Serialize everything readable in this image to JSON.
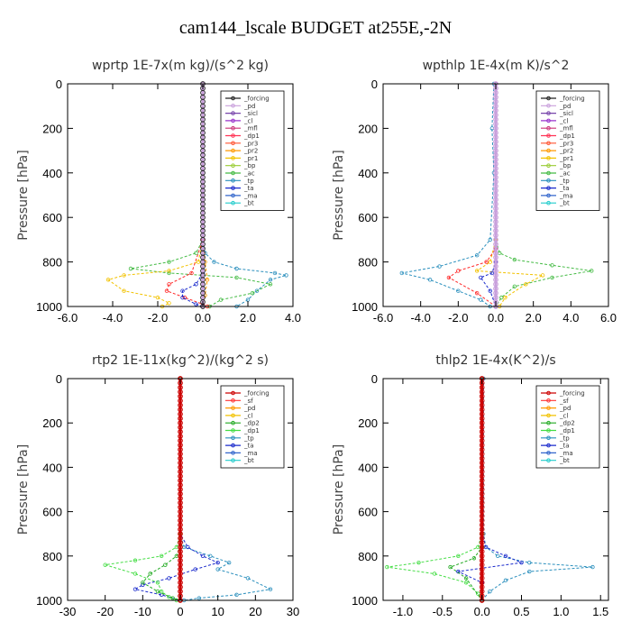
{
  "page_title": "cam144_lscale  BUDGET at255E,-2N",
  "chart_data": [
    {
      "type": "line",
      "title": "wprtp   1E-7x(m kg)/(s^2 kg)",
      "ylabel": "Pressure  [hPa]",
      "xlim": [
        -6,
        4
      ],
      "ylim": [
        1000,
        0
      ],
      "xticks": [
        "-6.0",
        "-4.0",
        "-2.0",
        "0.0",
        "2.0",
        "4.0"
      ],
      "yticks": [
        "0",
        "200",
        "400",
        "600",
        "800",
        "1000"
      ],
      "legend": [
        "_forcing",
        "_pd",
        "_sicl",
        "_cl",
        "_mfl",
        "_dp1",
        "_pr3",
        "_pr2",
        "_pr1",
        "_bp",
        "_ac",
        "_tp",
        "_ta",
        "_ma",
        "_bt"
      ],
      "legend_position": "upper-right",
      "series": [
        {
          "name": "_tp",
          "color": "#2a8fbd",
          "x": [
            0,
            0,
            0.1,
            0.5,
            1.5,
            3.2,
            3.7,
            3.0,
            2.4,
            2.0,
            1.5
          ],
          "y": [
            0,
            700,
            760,
            800,
            830,
            850,
            860,
            880,
            930,
            970,
            1000
          ]
        },
        {
          "name": "_ac",
          "color": "#44bb44",
          "x": [
            0,
            0,
            -0.3,
            -1.5,
            -3.2,
            -1.5,
            1.5,
            3.0,
            2.2,
            0.8,
            0.3
          ],
          "y": [
            0,
            700,
            760,
            800,
            830,
            850,
            870,
            900,
            940,
            970,
            1000
          ]
        },
        {
          "name": "_pr1",
          "color": "#f2c200",
          "x": [
            0,
            0,
            -0.2,
            -1.5,
            -3.5,
            -4.2,
            -3.5,
            -2.0,
            -1.5,
            -1.8
          ],
          "y": [
            0,
            700,
            800,
            840,
            860,
            880,
            930,
            960,
            985,
            1000
          ]
        },
        {
          "name": "_bp",
          "color": "#ff9900",
          "x": [
            0,
            0,
            0.1,
            0.2,
            0.1,
            0
          ],
          "y": [
            0,
            700,
            800,
            880,
            950,
            1000
          ]
        },
        {
          "name": "_pr2",
          "color": "#ff2a2a",
          "x": [
            0,
            0,
            -0.5,
            -1.5,
            -1.6,
            -0.8,
            0,
            0.2
          ],
          "y": [
            0,
            700,
            850,
            900,
            930,
            960,
            990,
            1000
          ]
        },
        {
          "name": "_ta",
          "color": "#1a2acc",
          "x": [
            0,
            0,
            -0.3,
            -0.9,
            -0.9,
            -0.3,
            0
          ],
          "y": [
            0,
            850,
            900,
            930,
            960,
            990,
            1000
          ]
        },
        {
          "name": "_forcing",
          "color": "#222222",
          "x": [
            0,
            0
          ],
          "y": [
            0,
            1000
          ]
        },
        {
          "name": "_pd",
          "color": "#c9a0dc",
          "x": [
            0,
            0
          ],
          "y": [
            0,
            1000
          ]
        }
      ]
    },
    {
      "type": "line",
      "title": "wpthlp   1E-4x(m K)/s^2",
      "ylabel": "Pressure  [hPa]",
      "xlim": [
        -6,
        6
      ],
      "ylim": [
        1000,
        0
      ],
      "xticks": [
        "-6.0",
        "-4.0",
        "-2.0",
        "0.0",
        "2.0",
        "4.0",
        "6.0"
      ],
      "yticks": [
        "0",
        "200",
        "400",
        "600",
        "800",
        "1000"
      ],
      "legend": [
        "_forcing",
        "_pd",
        "_sicl",
        "_cl",
        "_mfl",
        "_dp1",
        "_pr3",
        "_pr2",
        "_pr1",
        "_bp",
        "_ac",
        "_tp",
        "_ta",
        "_ma",
        "_bt"
      ],
      "legend_position": "upper-right",
      "series": [
        {
          "name": "_tp",
          "color": "#2a8fbd",
          "x": [
            -0.1,
            -0.2,
            -0.1,
            -0.3,
            -1.0,
            -3.0,
            -5.0,
            -3.5,
            -2.0,
            -0.8,
            -0.3
          ],
          "y": [
            0,
            200,
            400,
            700,
            770,
            820,
            850,
            880,
            930,
            970,
            1000
          ]
        },
        {
          "name": "_ac",
          "color": "#44bb44",
          "x": [
            0,
            0,
            0.2,
            1.0,
            3.0,
            5.1,
            3.0,
            1.0,
            0.3,
            0
          ],
          "y": [
            0,
            700,
            760,
            790,
            815,
            840,
            870,
            910,
            960,
            1000
          ]
        },
        {
          "name": "_pr1",
          "color": "#f2c200",
          "x": [
            0,
            0,
            -0.3,
            -1.0,
            2.5,
            1.6,
            0.5,
            0.2
          ],
          "y": [
            0,
            700,
            800,
            840,
            860,
            900,
            960,
            1000
          ]
        },
        {
          "name": "_pr2",
          "color": "#ff2a2a",
          "x": [
            0,
            0,
            -0.5,
            -2.0,
            -2.5,
            -1.0,
            0
          ],
          "y": [
            0,
            740,
            800,
            840,
            870,
            940,
            1000
          ]
        },
        {
          "name": "_ta",
          "color": "#1a2acc",
          "x": [
            0,
            0,
            -0.2,
            -0.8,
            -0.3,
            0
          ],
          "y": [
            0,
            800,
            850,
            870,
            930,
            1000
          ]
        },
        {
          "name": "_forcing",
          "color": "#c9a0dc",
          "x": [
            0,
            0
          ],
          "y": [
            0,
            1000
          ]
        }
      ]
    },
    {
      "type": "line",
      "title": "rtp2   1E-11x(kg^2)/(kg^2 s)",
      "ylabel": "Pressure  [hPa]",
      "xlim": [
        -30,
        30
      ],
      "ylim": [
        1000,
        0
      ],
      "xticks": [
        "-30",
        "-20",
        "-10",
        "0",
        "10",
        "20",
        "30"
      ],
      "yticks": [
        "0",
        "200",
        "400",
        "600",
        "800",
        "1000"
      ],
      "legend": [
        "_forcing",
        "_sf",
        "_pd",
        "_cl",
        "_dp2",
        "_dp1",
        "_tp",
        "_ta",
        "_ma",
        "_bt"
      ],
      "legend_position": "upper-right",
      "series": [
        {
          "name": "_tp",
          "color": "#2a8fbd",
          "x": [
            0,
            0,
            1,
            8,
            13,
            10,
            18,
            24,
            15,
            5,
            1
          ],
          "y": [
            0,
            700,
            760,
            800,
            830,
            860,
            900,
            950,
            975,
            990,
            1000
          ]
        },
        {
          "name": "_ta",
          "color": "#1a2acc",
          "x": [
            0,
            0,
            2,
            6,
            10,
            4,
            -3,
            -10,
            -12,
            -5,
            0
          ],
          "y": [
            0,
            700,
            760,
            800,
            830,
            860,
            900,
            930,
            950,
            975,
            1000
          ]
        },
        {
          "name": "_dp1",
          "color": "#44dd44",
          "x": [
            0,
            0,
            -1,
            -5,
            -12,
            -20,
            -12,
            -6,
            -5,
            -3,
            -1
          ],
          "y": [
            0,
            700,
            760,
            800,
            820,
            840,
            880,
            920,
            960,
            985,
            1000
          ]
        },
        {
          "name": "_dp2",
          "color": "#22aa22",
          "x": [
            0,
            0,
            -1,
            -4,
            -8,
            -10,
            -6,
            -2,
            0
          ],
          "y": [
            0,
            750,
            800,
            840,
            880,
            920,
            960,
            990,
            1000
          ]
        },
        {
          "name": "_forcing",
          "color": "#cc0000",
          "x": [
            0,
            0
          ],
          "y": [
            0,
            1000
          ]
        }
      ]
    },
    {
      "type": "line",
      "title": "thlp2   1E-4x(K^2)/s",
      "ylabel": "Pressure  [hPa]",
      "xlim": [
        -1.25,
        1.6
      ],
      "ylim": [
        1000,
        0
      ],
      "xticks": [
        "-1.0",
        "-0.5",
        "0.0",
        "0.5",
        "1.0",
        "1.5"
      ],
      "yticks": [
        "0",
        "200",
        "400",
        "600",
        "800",
        "1000"
      ],
      "legend": [
        "_forcing",
        "_sf",
        "_pd",
        "_cl",
        "_dp2",
        "_dp1",
        "_tp",
        "_ta",
        "_ma",
        "_bt"
      ],
      "legend_position": "upper-right",
      "series": [
        {
          "name": "_tp",
          "color": "#2a8fbd",
          "x": [
            0.02,
            0.02,
            0.05,
            0.2,
            0.6,
            1.4,
            0.6,
            0.3,
            0.1,
            0
          ],
          "y": [
            0,
            700,
            760,
            800,
            830,
            850,
            870,
            910,
            960,
            1000
          ]
        },
        {
          "name": "_ta",
          "color": "#1a2acc",
          "x": [
            0,
            0,
            0.05,
            0.3,
            0.5,
            -0.3,
            0,
            0
          ],
          "y": [
            0,
            700,
            760,
            800,
            830,
            870,
            920,
            1000
          ]
        },
        {
          "name": "_dp1",
          "color": "#44dd44",
          "x": [
            0,
            0,
            -0.05,
            -0.3,
            -0.8,
            -1.2,
            -0.6,
            -0.2,
            -0.05,
            0
          ],
          "y": [
            0,
            700,
            760,
            800,
            830,
            850,
            880,
            920,
            970,
            1000
          ]
        },
        {
          "name": "_dp2",
          "color": "#22aa22",
          "x": [
            0,
            0,
            -0.1,
            -0.4,
            -0.2,
            0
          ],
          "y": [
            0,
            760,
            810,
            850,
            900,
            1000
          ]
        },
        {
          "name": "_forcing",
          "color": "#cc0000",
          "x": [
            0,
            0
          ],
          "y": [
            0,
            1000
          ]
        }
      ]
    }
  ]
}
